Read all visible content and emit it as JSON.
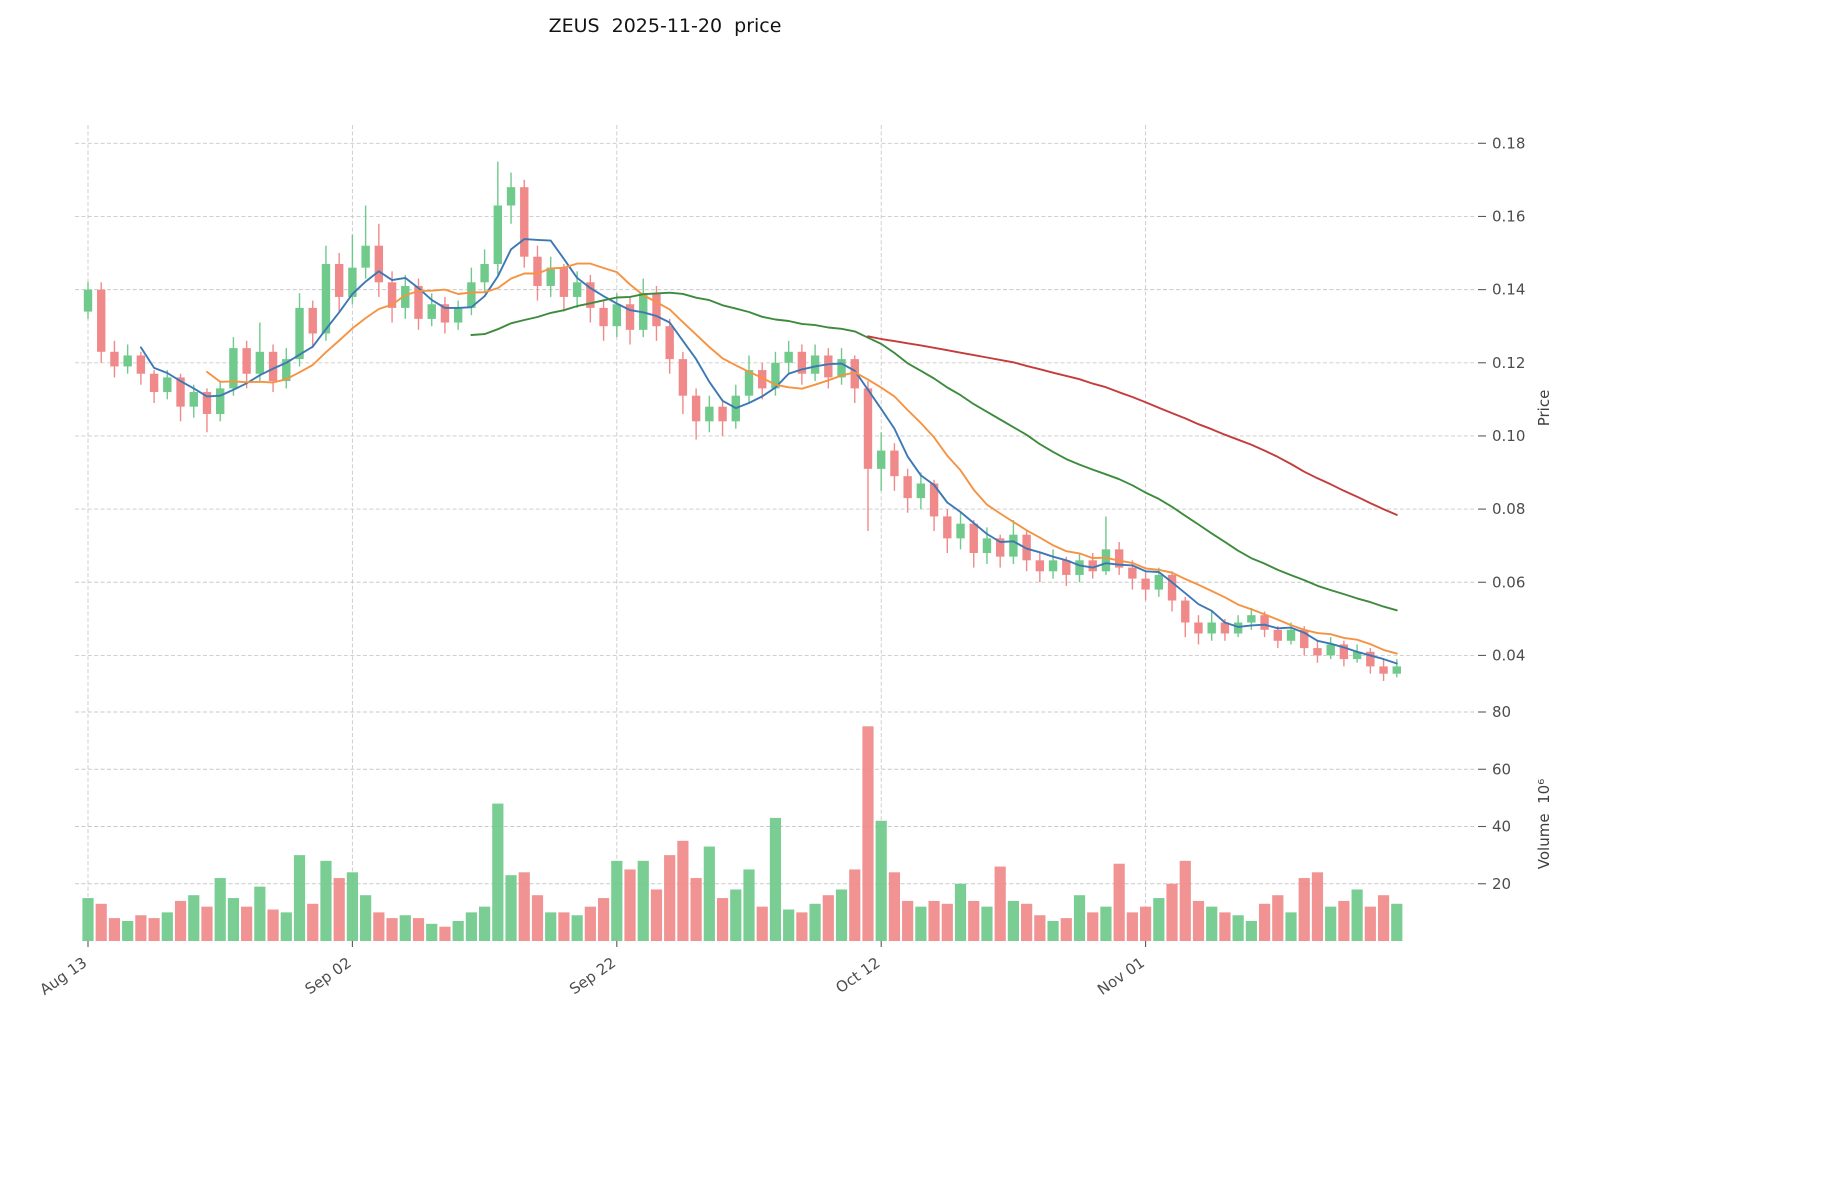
{
  "title": "ZEUS  2025-11-20  price",
  "axes": {
    "price_label": "Price",
    "volume_label": "Volume  10⁶",
    "price_ticks": [
      {
        "value": 0.18,
        "label": "0.18"
      },
      {
        "value": 0.16,
        "label": "0.16"
      },
      {
        "value": 0.14,
        "label": "0.14"
      },
      {
        "value": 0.12,
        "label": "0.12"
      },
      {
        "value": 0.1,
        "label": "0.10"
      },
      {
        "value": 0.08,
        "label": "0.08"
      },
      {
        "value": 0.06,
        "label": "0.06"
      },
      {
        "value": 0.04,
        "label": "0.04"
      }
    ],
    "volume_ticks": [
      {
        "value": 80,
        "label": "80"
      },
      {
        "value": 60,
        "label": "60"
      },
      {
        "value": 40,
        "label": "40"
      },
      {
        "value": 20,
        "label": "20"
      }
    ],
    "x_ticks": [
      {
        "index": 0,
        "label": "Aug 13"
      },
      {
        "index": 20,
        "label": "Sep 02"
      },
      {
        "index": 40,
        "label": "Sep 22"
      },
      {
        "index": 60,
        "label": "Oct 12"
      },
      {
        "index": 80,
        "label": "Nov 01"
      }
    ]
  },
  "style": {
    "up_color": "#6fca8b",
    "down_color": "#f08a8a",
    "grid_color": "#c9c9c9",
    "text_color": "#4d4d4d"
  },
  "chart_data": {
    "type": "candlestick",
    "title": "ZEUS  2025-11-20  price",
    "symbol": "ZEUS",
    "as_of_date": "2025-11-20",
    "ylabel": "Price",
    "ylabel_volume": "Volume 10⁶",
    "price_axis_ticks": [
      0.04,
      0.06,
      0.08,
      0.1,
      0.12,
      0.14,
      0.16,
      0.18
    ],
    "price_axis_range": [
      0.03,
      0.185
    ],
    "volume_axis_ticks_millions": [
      20,
      40,
      60,
      80
    ],
    "x_tick_labels": [
      "Aug 13",
      "Sep 02",
      "Sep 22",
      "Oct 12",
      "Nov 01"
    ],
    "grid": "dashed",
    "legend_position": "none",
    "dates": [
      "2025-08-13",
      "2025-08-14",
      "2025-08-15",
      "2025-08-16",
      "2025-08-17",
      "2025-08-18",
      "2025-08-19",
      "2025-08-20",
      "2025-08-21",
      "2025-08-22",
      "2025-08-23",
      "2025-08-24",
      "2025-08-25",
      "2025-08-26",
      "2025-08-27",
      "2025-08-28",
      "2025-08-29",
      "2025-08-30",
      "2025-08-31",
      "2025-09-01",
      "2025-09-02",
      "2025-09-03",
      "2025-09-04",
      "2025-09-05",
      "2025-09-06",
      "2025-09-07",
      "2025-09-08",
      "2025-09-09",
      "2025-09-10",
      "2025-09-11",
      "2025-09-12",
      "2025-09-13",
      "2025-09-14",
      "2025-09-15",
      "2025-09-16",
      "2025-09-17",
      "2025-09-18",
      "2025-09-19",
      "2025-09-20",
      "2025-09-21",
      "2025-09-22",
      "2025-09-23",
      "2025-09-24",
      "2025-09-25",
      "2025-09-26",
      "2025-09-27",
      "2025-09-28",
      "2025-09-29",
      "2025-09-30",
      "2025-10-01",
      "2025-10-02",
      "2025-10-03",
      "2025-10-04",
      "2025-10-05",
      "2025-10-06",
      "2025-10-07",
      "2025-10-08",
      "2025-10-09",
      "2025-10-10",
      "2025-10-11",
      "2025-10-12",
      "2025-10-13",
      "2025-10-14",
      "2025-10-15",
      "2025-10-16",
      "2025-10-17",
      "2025-10-18",
      "2025-10-19",
      "2025-10-20",
      "2025-10-21",
      "2025-10-22",
      "2025-10-23",
      "2025-10-24",
      "2025-10-25",
      "2025-10-26",
      "2025-10-27",
      "2025-10-28",
      "2025-10-29",
      "2025-10-30",
      "2025-10-31",
      "2025-11-01",
      "2025-11-02",
      "2025-11-03",
      "2025-11-04",
      "2025-11-05",
      "2025-11-06",
      "2025-11-07",
      "2025-11-08",
      "2025-11-09",
      "2025-11-10",
      "2025-11-11",
      "2025-11-12",
      "2025-11-13",
      "2025-11-14",
      "2025-11-15",
      "2025-11-16",
      "2025-11-17",
      "2025-11-18",
      "2025-11-19",
      "2025-11-20"
    ],
    "open": [
      0.134,
      0.14,
      0.123,
      0.119,
      0.122,
      0.117,
      0.112,
      0.116,
      0.108,
      0.112,
      0.106,
      0.113,
      0.124,
      0.117,
      0.123,
      0.115,
      0.121,
      0.135,
      0.128,
      0.147,
      0.138,
      0.146,
      0.152,
      0.142,
      0.135,
      0.141,
      0.132,
      0.136,
      0.131,
      0.135,
      0.142,
      0.147,
      0.163,
      0.168,
      0.149,
      0.141,
      0.146,
      0.138,
      0.142,
      0.135,
      0.13,
      0.136,
      0.129,
      0.139,
      0.13,
      0.121,
      0.111,
      0.104,
      0.108,
      0.104,
      0.111,
      0.118,
      0.113,
      0.12,
      0.123,
      0.117,
      0.122,
      0.116,
      0.121,
      0.113,
      0.091,
      0.096,
      0.089,
      0.083,
      0.087,
      0.078,
      0.072,
      0.076,
      0.068,
      0.072,
      0.067,
      0.073,
      0.066,
      0.063,
      0.066,
      0.062,
      0.066,
      0.063,
      0.069,
      0.064,
      0.061,
      0.058,
      0.062,
      0.055,
      0.049,
      0.046,
      0.049,
      0.046,
      0.049,
      0.051,
      0.047,
      0.044,
      0.047,
      0.042,
      0.04,
      0.043,
      0.039,
      0.041,
      0.037,
      0.035
    ],
    "high": [
      0.142,
      0.142,
      0.126,
      0.125,
      0.123,
      0.118,
      0.118,
      0.117,
      0.114,
      0.113,
      0.115,
      0.127,
      0.126,
      0.131,
      0.125,
      0.124,
      0.139,
      0.137,
      0.152,
      0.15,
      0.155,
      0.163,
      0.158,
      0.145,
      0.144,
      0.143,
      0.139,
      0.138,
      0.137,
      0.146,
      0.151,
      0.175,
      0.172,
      0.17,
      0.152,
      0.149,
      0.147,
      0.145,
      0.144,
      0.137,
      0.139,
      0.138,
      0.143,
      0.141,
      0.132,
      0.123,
      0.113,
      0.111,
      0.11,
      0.114,
      0.122,
      0.12,
      0.123,
      0.126,
      0.125,
      0.125,
      0.124,
      0.124,
      0.122,
      0.115,
      0.101,
      0.098,
      0.091,
      0.09,
      0.088,
      0.08,
      0.079,
      0.077,
      0.075,
      0.073,
      0.077,
      0.074,
      0.068,
      0.069,
      0.067,
      0.068,
      0.068,
      0.078,
      0.071,
      0.066,
      0.063,
      0.064,
      0.063,
      0.056,
      0.051,
      0.052,
      0.05,
      0.051,
      0.053,
      0.052,
      0.048,
      0.049,
      0.048,
      0.044,
      0.045,
      0.044,
      0.043,
      0.042,
      0.039,
      0.039
    ],
    "low": [
      0.132,
      0.12,
      0.116,
      0.117,
      0.114,
      0.109,
      0.11,
      0.104,
      0.105,
      0.101,
      0.104,
      0.111,
      0.113,
      0.115,
      0.112,
      0.113,
      0.119,
      0.124,
      0.126,
      0.134,
      0.136,
      0.143,
      0.138,
      0.131,
      0.132,
      0.129,
      0.13,
      0.128,
      0.129,
      0.133,
      0.139,
      0.144,
      0.158,
      0.146,
      0.137,
      0.138,
      0.134,
      0.135,
      0.131,
      0.126,
      0.127,
      0.125,
      0.127,
      0.126,
      0.117,
      0.106,
      0.099,
      0.101,
      0.1,
      0.102,
      0.109,
      0.11,
      0.111,
      0.117,
      0.114,
      0.115,
      0.113,
      0.114,
      0.109,
      0.074,
      0.085,
      0.085,
      0.079,
      0.08,
      0.074,
      0.068,
      0.069,
      0.064,
      0.065,
      0.064,
      0.065,
      0.063,
      0.06,
      0.061,
      0.059,
      0.06,
      0.061,
      0.062,
      0.062,
      0.058,
      0.055,
      0.056,
      0.052,
      0.045,
      0.043,
      0.044,
      0.044,
      0.045,
      0.047,
      0.045,
      0.042,
      0.043,
      0.04,
      0.038,
      0.039,
      0.037,
      0.038,
      0.035,
      0.033,
      0.034
    ],
    "close": [
      0.14,
      0.123,
      0.119,
      0.122,
      0.117,
      0.112,
      0.116,
      0.108,
      0.112,
      0.106,
      0.113,
      0.124,
      0.117,
      0.123,
      0.115,
      0.121,
      0.135,
      0.128,
      0.147,
      0.138,
      0.146,
      0.152,
      0.142,
      0.135,
      0.141,
      0.132,
      0.136,
      0.131,
      0.135,
      0.142,
      0.147,
      0.163,
      0.168,
      0.149,
      0.141,
      0.146,
      0.138,
      0.142,
      0.135,
      0.13,
      0.136,
      0.129,
      0.139,
      0.13,
      0.121,
      0.111,
      0.104,
      0.108,
      0.104,
      0.111,
      0.118,
      0.113,
      0.12,
      0.123,
      0.117,
      0.122,
      0.116,
      0.121,
      0.113,
      0.091,
      0.096,
      0.089,
      0.083,
      0.087,
      0.078,
      0.072,
      0.076,
      0.068,
      0.072,
      0.067,
      0.073,
      0.066,
      0.063,
      0.066,
      0.062,
      0.066,
      0.063,
      0.069,
      0.064,
      0.061,
      0.058,
      0.062,
      0.055,
      0.049,
      0.046,
      0.049,
      0.046,
      0.049,
      0.051,
      0.047,
      0.044,
      0.047,
      0.042,
      0.04,
      0.043,
      0.039,
      0.041,
      0.037,
      0.035,
      0.037
    ],
    "volume_millions": [
      15,
      13,
      8,
      7,
      9,
      8,
      10,
      14,
      16,
      12,
      22,
      15,
      12,
      19,
      11,
      10,
      30,
      13,
      28,
      22,
      24,
      16,
      10,
      8,
      9,
      8,
      6,
      5,
      7,
      10,
      12,
      48,
      23,
      24,
      16,
      10,
      10,
      9,
      12,
      15,
      28,
      25,
      28,
      18,
      30,
      35,
      22,
      33,
      15,
      18,
      25,
      12,
      43,
      11,
      10,
      13,
      16,
      18,
      25,
      75,
      42,
      24,
      14,
      12,
      14,
      13,
      20,
      14,
      12,
      26,
      14,
      13,
      9,
      7,
      8,
      16,
      10,
      12,
      27,
      10,
      12,
      15,
      20,
      28,
      14,
      12,
      10,
      9,
      7,
      13,
      16,
      10,
      22,
      24,
      12,
      14,
      18,
      12,
      16,
      13
    ],
    "moving_averages": [
      {
        "name": "ma5",
        "window": 5,
        "color": "#3d78b4"
      },
      {
        "name": "ma10",
        "window": 10,
        "color": "#f59342"
      },
      {
        "name": "ma30",
        "window": 30,
        "color": "#3d8b3d"
      },
      {
        "name": "ma60",
        "window": 60,
        "color": "#c43c3c"
      }
    ]
  }
}
